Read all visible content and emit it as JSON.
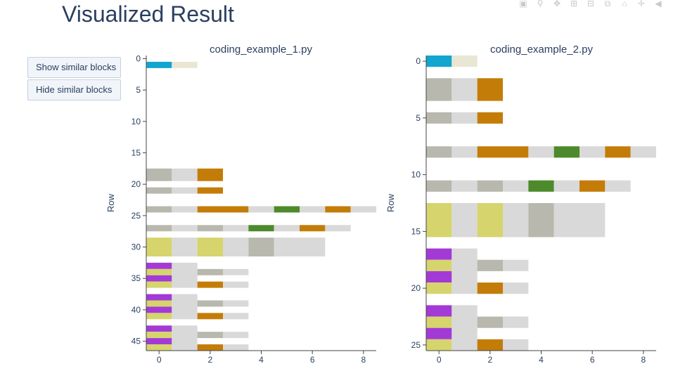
{
  "page": {
    "title": "Visualized Result"
  },
  "buttons": {
    "show_similar": "Show similar blocks",
    "hide_similar": "Hide similar blocks"
  },
  "modebar": {
    "icons": [
      "camera-icon",
      "zoom-icon",
      "pan-icon",
      "zoom-in-icon",
      "zoom-out-icon",
      "autoscale-icon",
      "reset-axes-icon",
      "spike-lines-icon",
      "hover-closest-icon"
    ]
  },
  "colors": {
    "gray": "#b8b8ae",
    "light": "#d8d9d8",
    "orange": "#c47c08",
    "green": "#4d8a2c",
    "yellow": "#d6d46c",
    "purple": "#a33ad6",
    "cyan": "#11a5cf",
    "beige": "#e9e6d3"
  },
  "chart_data": [
    {
      "type": "heatmap",
      "title": "coding_example_1.py",
      "ylabel": "Row",
      "xlabel": "",
      "xlim": [
        -0.5,
        8.5
      ],
      "ylim": [
        46.5,
        -0.5
      ],
      "xticks": [
        0,
        2,
        4,
        6,
        8
      ],
      "yticks": [
        0,
        5,
        10,
        15,
        20,
        25,
        30,
        35,
        40,
        45
      ],
      "cells": [
        {
          "y": [
            1,
            1
          ],
          "x": [
            0
          ],
          "c": "cyan"
        },
        {
          "y": [
            1,
            1
          ],
          "x": [
            1
          ],
          "c": "beige"
        },
        {
          "y": [
            18,
            19
          ],
          "x": [
            0
          ],
          "c": "gray"
        },
        {
          "y": [
            18,
            19
          ],
          "x": [
            1
          ],
          "c": "light"
        },
        {
          "y": [
            18,
            19
          ],
          "x": [
            2
          ],
          "c": "orange"
        },
        {
          "y": [
            21,
            21
          ],
          "x": [
            0
          ],
          "c": "gray"
        },
        {
          "y": [
            21,
            21
          ],
          "x": [
            1
          ],
          "c": "light"
        },
        {
          "y": [
            21,
            21
          ],
          "x": [
            2
          ],
          "c": "orange"
        },
        {
          "y": [
            24,
            24
          ],
          "x": [
            0
          ],
          "c": "gray"
        },
        {
          "y": [
            24,
            24
          ],
          "x": [
            1
          ],
          "c": "light"
        },
        {
          "y": [
            24,
            24
          ],
          "x": [
            2,
            3
          ],
          "c": "orange"
        },
        {
          "y": [
            24,
            24
          ],
          "x": [
            4
          ],
          "c": "light"
        },
        {
          "y": [
            24,
            24
          ],
          "x": [
            5
          ],
          "c": "green"
        },
        {
          "y": [
            24,
            24
          ],
          "x": [
            6
          ],
          "c": "light"
        },
        {
          "y": [
            24,
            24
          ],
          "x": [
            7
          ],
          "c": "orange"
        },
        {
          "y": [
            24,
            24
          ],
          "x": [
            8
          ],
          "c": "light"
        },
        {
          "y": [
            27,
            27
          ],
          "x": [
            0
          ],
          "c": "gray"
        },
        {
          "y": [
            27,
            27
          ],
          "x": [
            1
          ],
          "c": "light"
        },
        {
          "y": [
            27,
            27
          ],
          "x": [
            2
          ],
          "c": "gray"
        },
        {
          "y": [
            27,
            27
          ],
          "x": [
            3
          ],
          "c": "light"
        },
        {
          "y": [
            27,
            27
          ],
          "x": [
            4
          ],
          "c": "green"
        },
        {
          "y": [
            27,
            27
          ],
          "x": [
            5
          ],
          "c": "light"
        },
        {
          "y": [
            27,
            27
          ],
          "x": [
            6
          ],
          "c": "orange"
        },
        {
          "y": [
            27,
            27
          ],
          "x": [
            7
          ],
          "c": "light"
        },
        {
          "y": [
            29,
            31
          ],
          "x": [
            0
          ],
          "c": "yellow"
        },
        {
          "y": [
            29,
            31
          ],
          "x": [
            1
          ],
          "c": "light"
        },
        {
          "y": [
            29,
            31
          ],
          "x": [
            2
          ],
          "c": "yellow"
        },
        {
          "y": [
            29,
            31
          ],
          "x": [
            3
          ],
          "c": "light"
        },
        {
          "y": [
            29,
            31
          ],
          "x": [
            4
          ],
          "c": "gray"
        },
        {
          "y": [
            29,
            31
          ],
          "x": [
            5,
            6
          ],
          "c": "light"
        },
        {
          "y": [
            33,
            33
          ],
          "x": [
            0
          ],
          "c": "purple"
        },
        {
          "y": [
            34,
            34
          ],
          "x": [
            0
          ],
          "c": "yellow"
        },
        {
          "y": [
            35,
            35
          ],
          "x": [
            0
          ],
          "c": "purple"
        },
        {
          "y": [
            36,
            36
          ],
          "x": [
            0
          ],
          "c": "yellow"
        },
        {
          "y": [
            33,
            36
          ],
          "x": [
            1
          ],
          "c": "light"
        },
        {
          "y": [
            34,
            34
          ],
          "x": [
            2
          ],
          "c": "gray"
        },
        {
          "y": [
            34,
            34
          ],
          "x": [
            3
          ],
          "c": "light"
        },
        {
          "y": [
            36,
            36
          ],
          "x": [
            2
          ],
          "c": "orange"
        },
        {
          "y": [
            36,
            36
          ],
          "x": [
            3
          ],
          "c": "light"
        },
        {
          "y": [
            38,
            38
          ],
          "x": [
            0
          ],
          "c": "purple"
        },
        {
          "y": [
            39,
            39
          ],
          "x": [
            0
          ],
          "c": "yellow"
        },
        {
          "y": [
            40,
            40
          ],
          "x": [
            0
          ],
          "c": "purple"
        },
        {
          "y": [
            41,
            41
          ],
          "x": [
            0
          ],
          "c": "yellow"
        },
        {
          "y": [
            38,
            41
          ],
          "x": [
            1
          ],
          "c": "light"
        },
        {
          "y": [
            39,
            39
          ],
          "x": [
            2
          ],
          "c": "gray"
        },
        {
          "y": [
            39,
            39
          ],
          "x": [
            3
          ],
          "c": "light"
        },
        {
          "y": [
            41,
            41
          ],
          "x": [
            2
          ],
          "c": "orange"
        },
        {
          "y": [
            41,
            41
          ],
          "x": [
            3
          ],
          "c": "light"
        },
        {
          "y": [
            43,
            43
          ],
          "x": [
            0
          ],
          "c": "purple"
        },
        {
          "y": [
            44,
            44
          ],
          "x": [
            0
          ],
          "c": "yellow"
        },
        {
          "y": [
            45,
            45
          ],
          "x": [
            0
          ],
          "c": "purple"
        },
        {
          "y": [
            46,
            46
          ],
          "x": [
            0
          ],
          "c": "yellow"
        },
        {
          "y": [
            43,
            46
          ],
          "x": [
            1
          ],
          "c": "light"
        },
        {
          "y": [
            44,
            44
          ],
          "x": [
            2
          ],
          "c": "gray"
        },
        {
          "y": [
            44,
            44
          ],
          "x": [
            3
          ],
          "c": "light"
        },
        {
          "y": [
            46,
            46
          ],
          "x": [
            2
          ],
          "c": "orange"
        },
        {
          "y": [
            46,
            46
          ],
          "x": [
            3
          ],
          "c": "light"
        }
      ]
    },
    {
      "type": "heatmap",
      "title": "coding_example_2.py",
      "ylabel": "Row",
      "xlabel": "",
      "xlim": [
        -0.5,
        8.5
      ],
      "ylim": [
        25.5,
        -0.5
      ],
      "xticks": [
        0,
        2,
        4,
        6,
        8
      ],
      "yticks": [
        0,
        5,
        10,
        15,
        20,
        25
      ],
      "cells": [
        {
          "y": [
            0,
            0
          ],
          "x": [
            0
          ],
          "c": "cyan"
        },
        {
          "y": [
            0,
            0
          ],
          "x": [
            1
          ],
          "c": "beige"
        },
        {
          "y": [
            2,
            3
          ],
          "x": [
            0
          ],
          "c": "gray"
        },
        {
          "y": [
            2,
            3
          ],
          "x": [
            1
          ],
          "c": "light"
        },
        {
          "y": [
            2,
            3
          ],
          "x": [
            2
          ],
          "c": "orange"
        },
        {
          "y": [
            5,
            5
          ],
          "x": [
            0
          ],
          "c": "gray"
        },
        {
          "y": [
            5,
            5
          ],
          "x": [
            1
          ],
          "c": "light"
        },
        {
          "y": [
            5,
            5
          ],
          "x": [
            2
          ],
          "c": "orange"
        },
        {
          "y": [
            8,
            8
          ],
          "x": [
            0
          ],
          "c": "gray"
        },
        {
          "y": [
            8,
            8
          ],
          "x": [
            1
          ],
          "c": "light"
        },
        {
          "y": [
            8,
            8
          ],
          "x": [
            2,
            3
          ],
          "c": "orange"
        },
        {
          "y": [
            8,
            8
          ],
          "x": [
            4
          ],
          "c": "light"
        },
        {
          "y": [
            8,
            8
          ],
          "x": [
            5
          ],
          "c": "green"
        },
        {
          "y": [
            8,
            8
          ],
          "x": [
            6
          ],
          "c": "light"
        },
        {
          "y": [
            8,
            8
          ],
          "x": [
            7
          ],
          "c": "orange"
        },
        {
          "y": [
            8,
            8
          ],
          "x": [
            8
          ],
          "c": "light"
        },
        {
          "y": [
            11,
            11
          ],
          "x": [
            0
          ],
          "c": "gray"
        },
        {
          "y": [
            11,
            11
          ],
          "x": [
            1
          ],
          "c": "light"
        },
        {
          "y": [
            11,
            11
          ],
          "x": [
            2
          ],
          "c": "gray"
        },
        {
          "y": [
            11,
            11
          ],
          "x": [
            3
          ],
          "c": "light"
        },
        {
          "y": [
            11,
            11
          ],
          "x": [
            4
          ],
          "c": "green"
        },
        {
          "y": [
            11,
            11
          ],
          "x": [
            5
          ],
          "c": "light"
        },
        {
          "y": [
            11,
            11
          ],
          "x": [
            6
          ],
          "c": "orange"
        },
        {
          "y": [
            11,
            11
          ],
          "x": [
            7
          ],
          "c": "light"
        },
        {
          "y": [
            13,
            15
          ],
          "x": [
            0
          ],
          "c": "yellow"
        },
        {
          "y": [
            13,
            15
          ],
          "x": [
            1
          ],
          "c": "light"
        },
        {
          "y": [
            13,
            15
          ],
          "x": [
            2
          ],
          "c": "yellow"
        },
        {
          "y": [
            13,
            15
          ],
          "x": [
            3
          ],
          "c": "light"
        },
        {
          "y": [
            13,
            15
          ],
          "x": [
            4
          ],
          "c": "gray"
        },
        {
          "y": [
            13,
            15
          ],
          "x": [
            5,
            6
          ],
          "c": "light"
        },
        {
          "y": [
            17,
            17
          ],
          "x": [
            0
          ],
          "c": "purple"
        },
        {
          "y": [
            18,
            18
          ],
          "x": [
            0
          ],
          "c": "yellow"
        },
        {
          "y": [
            19,
            19
          ],
          "x": [
            0
          ],
          "c": "purple"
        },
        {
          "y": [
            20,
            20
          ],
          "x": [
            0
          ],
          "c": "yellow"
        },
        {
          "y": [
            17,
            20
          ],
          "x": [
            1
          ],
          "c": "light"
        },
        {
          "y": [
            18,
            18
          ],
          "x": [
            2
          ],
          "c": "gray"
        },
        {
          "y": [
            18,
            18
          ],
          "x": [
            3
          ],
          "c": "light"
        },
        {
          "y": [
            20,
            20
          ],
          "x": [
            2
          ],
          "c": "orange"
        },
        {
          "y": [
            20,
            20
          ],
          "x": [
            3
          ],
          "c": "light"
        },
        {
          "y": [
            22,
            22
          ],
          "x": [
            0
          ],
          "c": "purple"
        },
        {
          "y": [
            23,
            23
          ],
          "x": [
            0
          ],
          "c": "yellow"
        },
        {
          "y": [
            24,
            24
          ],
          "x": [
            0
          ],
          "c": "purple"
        },
        {
          "y": [
            25,
            25
          ],
          "x": [
            0
          ],
          "c": "yellow"
        },
        {
          "y": [
            22,
            25
          ],
          "x": [
            1
          ],
          "c": "light"
        },
        {
          "y": [
            23,
            23
          ],
          "x": [
            2
          ],
          "c": "gray"
        },
        {
          "y": [
            23,
            23
          ],
          "x": [
            3
          ],
          "c": "light"
        },
        {
          "y": [
            25,
            25
          ],
          "x": [
            2
          ],
          "c": "orange"
        },
        {
          "y": [
            25,
            25
          ],
          "x": [
            3
          ],
          "c": "light"
        }
      ]
    }
  ]
}
